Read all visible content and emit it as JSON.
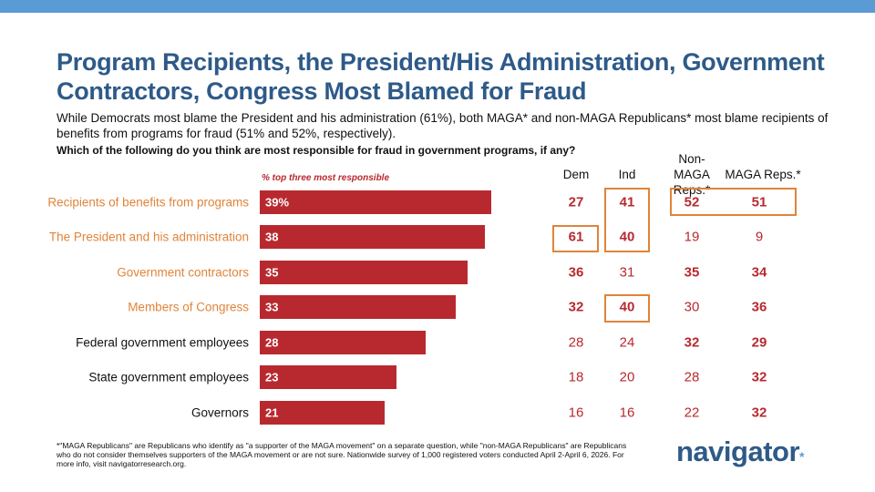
{
  "title": "Program Recipients, the President/His Administration, Government Contractors, Congress Most Blamed for Fraud",
  "subtitle": "While Democrats most blame the President and his administration (61%), both MAGA* and non-MAGA Republicans* most blame recipients of benefits from programs for fraud (51% and 52%, respectively).",
  "question": "Which of the following do you think are most responsible for fraud in government programs, if any?",
  "footnote": "*\"MAGA Republicans\" are Republicans who identify as \"a supporter of the MAGA movement\" on a separate question, while \"non-MAGA Republicans\" are Republicans who do not consider themselves supporters of the MAGA movement or are not sure. Nationwide survey of 1,000 registered voters conducted April 2-April 6, 2026. For more info, visit navigatorresearch.org.",
  "logo": "navigator",
  "colors": {
    "bar": "#b8292f",
    "highlight": "#e0843a",
    "title": "#2e5a88",
    "topbar": "#5b9bd5"
  },
  "chart_data": {
    "type": "bar",
    "bar_note": "% top three most responsible",
    "categories": [
      "Recipients of benefits from programs",
      "The President and his administration",
      "Government contractors",
      "Members of Congress",
      "Federal government employees",
      "State government employees",
      "Governors"
    ],
    "highlighted_categories": [
      true,
      true,
      true,
      true,
      false,
      false,
      false
    ],
    "values": [
      39,
      38,
      35,
      33,
      28,
      23,
      21
    ],
    "value_labels": [
      "39%",
      "38",
      "35",
      "33",
      "28",
      "23",
      "21"
    ],
    "table": {
      "columns": [
        "Dem",
        "Ind",
        "Non-MAGA Reps.*",
        "MAGA Reps.*"
      ],
      "rows": [
        [
          27,
          41,
          52,
          51
        ],
        [
          61,
          40,
          19,
          9
        ],
        [
          36,
          31,
          35,
          34
        ],
        [
          32,
          40,
          30,
          36
        ],
        [
          28,
          24,
          32,
          29
        ],
        [
          18,
          20,
          28,
          32
        ],
        [
          16,
          16,
          22,
          32
        ]
      ],
      "bold": [
        [
          true,
          true,
          true,
          true
        ],
        [
          true,
          true,
          false,
          false
        ],
        [
          true,
          false,
          true,
          true
        ],
        [
          true,
          true,
          false,
          true
        ],
        [
          false,
          false,
          true,
          true
        ],
        [
          false,
          false,
          false,
          true
        ],
        [
          false,
          false,
          false,
          true
        ]
      ]
    }
  }
}
